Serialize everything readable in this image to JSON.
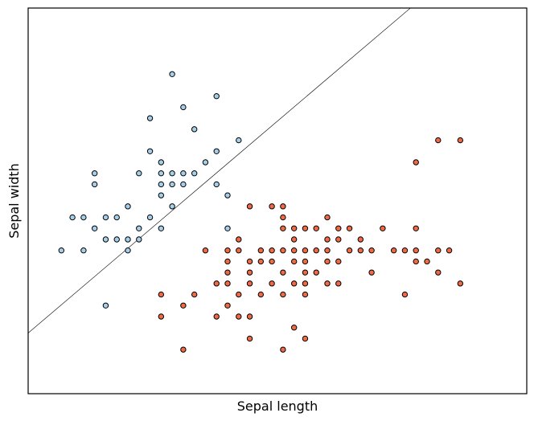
{
  "chart_data": {
    "type": "scatter",
    "title": "",
    "xlabel": "Sepal length",
    "ylabel": "Sepal width",
    "xlim": [
      3.8,
      8.3
    ],
    "ylim": [
      1.5,
      5.0
    ],
    "grid": false,
    "show_ticks": false,
    "decision_boundary": {
      "style": "line",
      "color": "#000000",
      "points": [
        [
          3.8,
          2.05
        ],
        [
          7.25,
          5.0
        ]
      ]
    },
    "series": [
      {
        "class": 0,
        "color": "#a6cfea",
        "points": [
          [
            5.1,
            4.4
          ],
          [
            4.9,
            4.0
          ],
          [
            5.5,
            4.2
          ],
          [
            5.2,
            4.1
          ],
          [
            5.3,
            3.9
          ],
          [
            5.5,
            3.7
          ],
          [
            5.7,
            3.8
          ],
          [
            4.9,
            3.7
          ],
          [
            5.0,
            3.6
          ],
          [
            5.4,
            3.6
          ],
          [
            4.4,
            3.5
          ],
          [
            4.8,
            3.5
          ],
          [
            5.0,
            3.5
          ],
          [
            5.1,
            3.5
          ],
          [
            5.2,
            3.5
          ],
          [
            5.3,
            3.5
          ],
          [
            4.4,
            3.4
          ],
          [
            5.0,
            3.4
          ],
          [
            5.1,
            3.4
          ],
          [
            5.2,
            3.4
          ],
          [
            5.5,
            3.4
          ],
          [
            5.6,
            3.3
          ],
          [
            4.7,
            3.2
          ],
          [
            5.0,
            3.3
          ],
          [
            5.1,
            3.2
          ],
          [
            4.2,
            3.1
          ],
          [
            4.3,
            3.1
          ],
          [
            4.5,
            3.1
          ],
          [
            4.6,
            3.1
          ],
          [
            4.9,
            3.1
          ],
          [
            4.4,
            3.0
          ],
          [
            4.8,
            3.0
          ],
          [
            5.0,
            3.0
          ],
          [
            5.6,
            3.0
          ],
          [
            4.5,
            2.9
          ],
          [
            4.6,
            2.9
          ],
          [
            4.7,
            2.9
          ],
          [
            4.8,
            2.9
          ],
          [
            4.3,
            2.8
          ],
          [
            4.1,
            2.8
          ],
          [
            4.7,
            2.8
          ],
          [
            4.5,
            2.3
          ]
        ]
      },
      {
        "class": 1,
        "color": "#f06a45",
        "points": [
          [
            7.5,
            3.8
          ],
          [
            7.7,
            3.8
          ],
          [
            7.3,
            3.6
          ],
          [
            5.8,
            3.2
          ],
          [
            6.0,
            3.2
          ],
          [
            6.1,
            3.2
          ],
          [
            6.1,
            3.1
          ],
          [
            6.5,
            3.1
          ],
          [
            6.1,
            3.0
          ],
          [
            6.2,
            3.0
          ],
          [
            6.3,
            3.0
          ],
          [
            6.4,
            3.0
          ],
          [
            6.6,
            3.0
          ],
          [
            6.7,
            3.0
          ],
          [
            7.0,
            3.0
          ],
          [
            7.3,
            3.0
          ],
          [
            5.7,
            2.9
          ],
          [
            6.2,
            2.9
          ],
          [
            6.5,
            2.9
          ],
          [
            6.6,
            2.9
          ],
          [
            6.8,
            2.9
          ],
          [
            6.2,
            2.8
          ],
          [
            6.9,
            2.8
          ],
          [
            7.2,
            2.8
          ],
          [
            7.3,
            2.8
          ],
          [
            5.4,
            2.8
          ],
          [
            5.6,
            2.8
          ],
          [
            5.7,
            2.8
          ],
          [
            5.9,
            2.8
          ],
          [
            6.0,
            2.8
          ],
          [
            6.1,
            2.8
          ],
          [
            6.3,
            2.8
          ],
          [
            6.4,
            2.8
          ],
          [
            6.5,
            2.8
          ],
          [
            6.7,
            2.8
          ],
          [
            6.8,
            2.8
          ],
          [
            7.1,
            2.8
          ],
          [
            7.5,
            2.8
          ],
          [
            7.6,
            2.8
          ],
          [
            5.6,
            2.7
          ],
          [
            5.8,
            2.7
          ],
          [
            5.9,
            2.7
          ],
          [
            6.0,
            2.7
          ],
          [
            6.2,
            2.7
          ],
          [
            6.3,
            2.7
          ],
          [
            6.5,
            2.7
          ],
          [
            6.6,
            2.7
          ],
          [
            7.3,
            2.7
          ],
          [
            7.4,
            2.7
          ],
          [
            5.6,
            2.6
          ],
          [
            5.8,
            2.6
          ],
          [
            6.1,
            2.6
          ],
          [
            6.3,
            2.6
          ],
          [
            6.4,
            2.6
          ],
          [
            6.9,
            2.6
          ],
          [
            7.5,
            2.6
          ],
          [
            5.5,
            2.5
          ],
          [
            5.6,
            2.5
          ],
          [
            5.8,
            2.5
          ],
          [
            6.0,
            2.5
          ],
          [
            6.2,
            2.5
          ],
          [
            6.3,
            2.5
          ],
          [
            6.5,
            2.5
          ],
          [
            6.6,
            2.5
          ],
          [
            7.7,
            2.5
          ],
          [
            5.0,
            2.4
          ],
          [
            5.3,
            2.4
          ],
          [
            5.7,
            2.4
          ],
          [
            5.9,
            2.4
          ],
          [
            6.1,
            2.4
          ],
          [
            6.3,
            2.4
          ],
          [
            7.2,
            2.4
          ],
          [
            5.2,
            2.3
          ],
          [
            5.6,
            2.3
          ],
          [
            5.0,
            2.2
          ],
          [
            5.5,
            2.2
          ],
          [
            5.7,
            2.2
          ],
          [
            5.8,
            2.2
          ],
          [
            5.8,
            2.0
          ],
          [
            6.3,
            2.0
          ],
          [
            5.2,
            1.9
          ],
          [
            6.1,
            1.9
          ],
          [
            6.2,
            2.1
          ]
        ]
      }
    ]
  }
}
